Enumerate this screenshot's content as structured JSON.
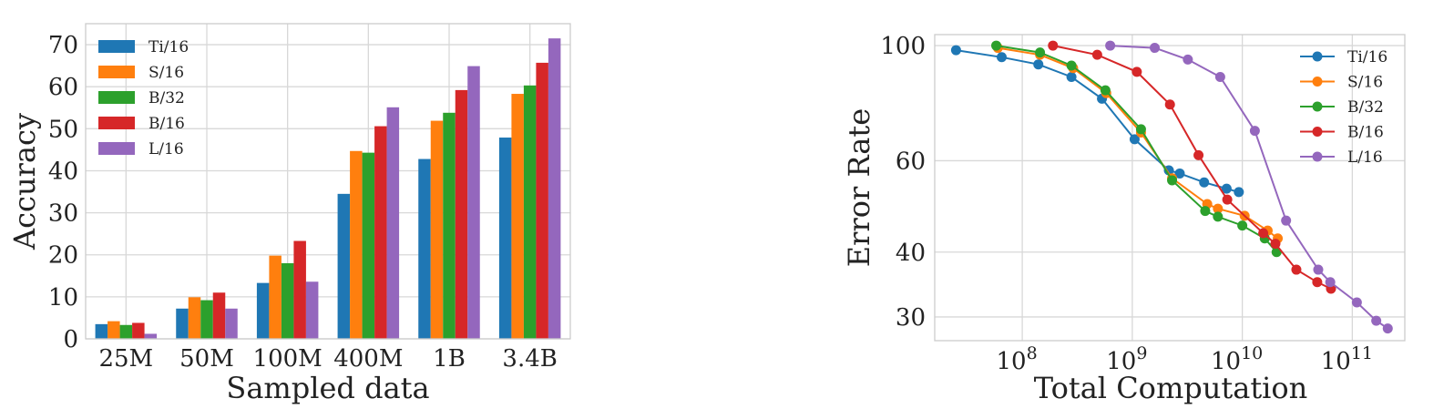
{
  "chart_data": [
    {
      "type": "bar",
      "categories": [
        "25M",
        "50M",
        "100M",
        "400M",
        "1B",
        "3.4B"
      ],
      "series": [
        {
          "name": "Ti/16",
          "color": "#1f77b4",
          "values": [
            3.5,
            7.2,
            13.3,
            34.5,
            42.8,
            47.9
          ]
        },
        {
          "name": "S/16",
          "color": "#ff7f0e",
          "values": [
            4.2,
            9.9,
            19.8,
            44.7,
            51.9,
            58.3
          ]
        },
        {
          "name": "B/32",
          "color": "#2ca02c",
          "values": [
            3.3,
            9.2,
            18.0,
            44.3,
            53.8,
            60.3
          ]
        },
        {
          "name": "B/16",
          "color": "#d62728",
          "values": [
            3.8,
            11.0,
            23.3,
            50.6,
            59.2,
            65.7
          ]
        },
        {
          "name": "L/16",
          "color": "#9467bd",
          "values": [
            1.2,
            7.2,
            13.6,
            55.1,
            64.9,
            71.5
          ]
        }
      ],
      "xlabel": "Sampled data",
      "ylabel": "Accuracy",
      "ylim": [
        0,
        75
      ],
      "yticks": [
        0,
        10,
        20,
        30,
        40,
        50,
        60,
        70
      ],
      "grid": true,
      "legend": "top-left"
    },
    {
      "type": "line",
      "xscale": "log",
      "yscale": "log",
      "series": [
        {
          "name": "Ti/16",
          "color": "#1f77b4",
          "points": [
            [
              25000000.0,
              98
            ],
            [
              65000000.0,
              95
            ],
            [
              140000000.0,
              92
            ],
            [
              280000000.0,
              87
            ],
            [
              530000000.0,
              79
            ],
            [
              1050000000.0,
              66
            ],
            [
              2150000000.0,
              57.5
            ],
            [
              2700000000.0,
              56.7
            ],
            [
              4500000000.0,
              54.5
            ],
            [
              7200000000.0,
              53
            ],
            [
              9300000000.0,
              52.2
            ]
          ]
        },
        {
          "name": "S/16",
          "color": "#ff7f0e",
          "points": [
            [
              60000000.0,
              99
            ],
            [
              145000000.0,
              96
            ],
            [
              290000000.0,
              90.5
            ],
            [
              580000000.0,
              81
            ],
            [
              1200000000.0,
              68
            ],
            [
              2300000000.0,
              55.5
            ],
            [
              4800000000.0,
              49.5
            ],
            [
              6000000000.0,
              48.5
            ],
            [
              10500000000.0,
              47
            ],
            [
              17000000000.0,
              44
            ],
            [
              21000000000.0,
              42.5
            ]
          ]
        },
        {
          "name": "B/32",
          "color": "#2ca02c",
          "points": [
            [
              58000000.0,
              100
            ],
            [
              145000000.0,
              97
            ],
            [
              280000000.0,
              91.5
            ],
            [
              570000000.0,
              82
            ],
            [
              1200000000.0,
              69
            ],
            [
              2300000000.0,
              55
            ],
            [
              4600000000.0,
              48
            ],
            [
              6000000000.0,
              46.8
            ],
            [
              10000000000.0,
              45
            ],
            [
              16000000000.0,
              42.5
            ],
            [
              20500000000.0,
              40
            ]
          ]
        },
        {
          "name": "B/16",
          "color": "#d62728",
          "points": [
            [
              190000000.0,
              100
            ],
            [
              480000000.0,
              96
            ],
            [
              1100000000.0,
              89
            ],
            [
              2200000000.0,
              77
            ],
            [
              4000000000.0,
              61.5
            ],
            [
              7300000000.0,
              50.5
            ],
            [
              15500000000.0,
              43.5
            ],
            [
              20000000000.0,
              41.5
            ],
            [
              31000000000.0,
              37
            ],
            [
              48000000000.0,
              35
            ],
            [
              64000000000.0,
              34
            ]
          ]
        },
        {
          "name": "L/16",
          "color": "#9467bd",
          "points": [
            [
              630000000.0,
              100
            ],
            [
              1600000000.0,
              99
            ],
            [
              3200000000.0,
              94
            ],
            [
              6300000000.0,
              87
            ],
            [
              13000000000.0,
              68.5
            ],
            [
              25000000000.0,
              46
            ],
            [
              49000000000.0,
              37
            ],
            [
              63000000000.0,
              35
            ],
            [
              110000000000.0,
              32
            ],
            [
              165000000000.0,
              29.5
            ],
            [
              210000000000.0,
              28.5
            ]
          ]
        }
      ],
      "xlabel": "Total Computation",
      "ylabel": "Error Rate",
      "xlim": [
        16000000.0,
        300000000000.0
      ],
      "ylim": [
        27,
        105
      ],
      "xticks": [
        "10^8",
        "10^9",
        "10^10",
        "10^11"
      ],
      "yticks": [
        30,
        40,
        60,
        100
      ],
      "grid": true,
      "legend": "top-right"
    }
  ]
}
